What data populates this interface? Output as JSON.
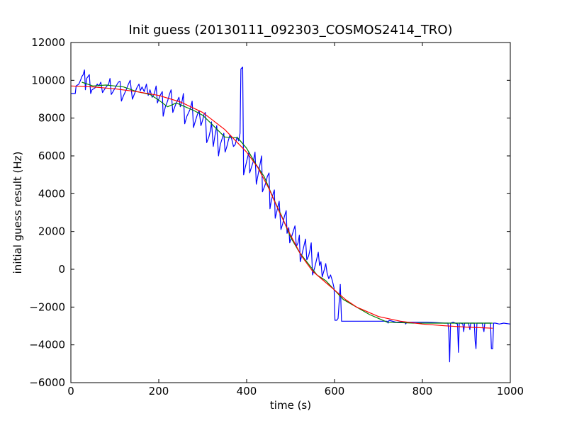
{
  "chart_data": {
    "type": "line",
    "title": "Init guess (20130111_092303_COSMOS2414_TRO)",
    "xlabel": "time (s)",
    "ylabel": "initial guess result (Hz)",
    "xlim": [
      0,
      1000
    ],
    "ylim": [
      -6000,
      12000
    ],
    "xticks": [
      0,
      200,
      400,
      600,
      800,
      1000
    ],
    "yticks": [
      -6000,
      -4000,
      -2000,
      0,
      2000,
      4000,
      6000,
      8000,
      10000,
      12000
    ],
    "grid": false,
    "legend": "none",
    "series": [
      {
        "color": "#0000ff",
        "points": [
          [
            0,
            9300
          ],
          [
            10,
            9300
          ],
          [
            12,
            9700
          ],
          [
            18,
            9800
          ],
          [
            22,
            10000
          ],
          [
            25,
            10200
          ],
          [
            28,
            10300
          ],
          [
            31,
            10550
          ],
          [
            33,
            9500
          ],
          [
            36,
            10100
          ],
          [
            42,
            10300
          ],
          [
            45,
            9300
          ],
          [
            48,
            9500
          ],
          [
            55,
            9600
          ],
          [
            60,
            9800
          ],
          [
            64,
            9700
          ],
          [
            68,
            9900
          ],
          [
            72,
            9350
          ],
          [
            76,
            9500
          ],
          [
            82,
            9700
          ],
          [
            86,
            9800
          ],
          [
            89,
            10100
          ],
          [
            92,
            9250
          ],
          [
            96,
            9400
          ],
          [
            103,
            9700
          ],
          [
            108,
            9900
          ],
          [
            112,
            9950
          ],
          [
            115,
            8900
          ],
          [
            120,
            9200
          ],
          [
            126,
            9500
          ],
          [
            131,
            9800
          ],
          [
            135,
            10000
          ],
          [
            140,
            9000
          ],
          [
            145,
            9300
          ],
          [
            150,
            9600
          ],
          [
            155,
            9800
          ],
          [
            158,
            9450
          ],
          [
            162,
            9650
          ],
          [
            167,
            9400
          ],
          [
            172,
            9800
          ],
          [
            176,
            9200
          ],
          [
            180,
            9500
          ],
          [
            185,
            9100
          ],
          [
            190,
            9300
          ],
          [
            194,
            9700
          ],
          [
            197,
            8800
          ],
          [
            203,
            9200
          ],
          [
            208,
            9400
          ],
          [
            210,
            8100
          ],
          [
            215,
            8600
          ],
          [
            220,
            8900
          ],
          [
            225,
            9300
          ],
          [
            228,
            9500
          ],
          [
            232,
            8300
          ],
          [
            238,
            8700
          ],
          [
            242,
            8900
          ],
          [
            246,
            9100
          ],
          [
            249,
            8600
          ],
          [
            253,
            8900
          ],
          [
            256,
            9300
          ],
          [
            259,
            7700
          ],
          [
            264,
            8100
          ],
          [
            268,
            8300
          ],
          [
            272,
            8500
          ],
          [
            276,
            8900
          ],
          [
            279,
            7500
          ],
          [
            284,
            7900
          ],
          [
            288,
            8200
          ],
          [
            292,
            8400
          ],
          [
            296,
            7600
          ],
          [
            300,
            7900
          ],
          [
            303,
            8200
          ],
          [
            306,
            8300
          ],
          [
            309,
            6700
          ],
          [
            314,
            7000
          ],
          [
            318,
            7400
          ],
          [
            320,
            7800
          ],
          [
            324,
            6500
          ],
          [
            328,
            7100
          ],
          [
            332,
            7600
          ],
          [
            336,
            6000
          ],
          [
            340,
            6600
          ],
          [
            344,
            6900
          ],
          [
            348,
            7200
          ],
          [
            351,
            6200
          ],
          [
            355,
            6500
          ],
          [
            358,
            6800
          ],
          [
            362,
            7100
          ],
          [
            366,
            6900
          ],
          [
            370,
            6500
          ],
          [
            374,
            6600
          ],
          [
            378,
            7000
          ],
          [
            382,
            6800
          ],
          [
            385,
            7200
          ],
          [
            387,
            10600
          ],
          [
            391,
            10700
          ],
          [
            393,
            5000
          ],
          [
            397,
            5400
          ],
          [
            401,
            5800
          ],
          [
            405,
            6200
          ],
          [
            407,
            5100
          ],
          [
            411,
            5400
          ],
          [
            415,
            5700
          ],
          [
            419,
            6200
          ],
          [
            422,
            4500
          ],
          [
            426,
            5000
          ],
          [
            430,
            5500
          ],
          [
            434,
            6000
          ],
          [
            436,
            4100
          ],
          [
            441,
            4400
          ],
          [
            444,
            4600
          ],
          [
            447,
            4900
          ],
          [
            451,
            5100
          ],
          [
            453,
            3200
          ],
          [
            456,
            3600
          ],
          [
            459,
            3900
          ],
          [
            463,
            4200
          ],
          [
            465,
            2700
          ],
          [
            468,
            3000
          ],
          [
            471,
            3300
          ],
          [
            474,
            3600
          ],
          [
            478,
            2100
          ],
          [
            482,
            2400
          ],
          [
            486,
            2800
          ],
          [
            490,
            3100
          ],
          [
            492,
            1900
          ],
          [
            496,
            2200
          ],
          [
            498,
            1400
          ],
          [
            502,
            1700
          ],
          [
            506,
            2000
          ],
          [
            510,
            2300
          ],
          [
            513,
            1200
          ],
          [
            517,
            1400
          ],
          [
            520,
            1800
          ],
          [
            522,
            400
          ],
          [
            526,
            800
          ],
          [
            530,
            1200
          ],
          [
            534,
            1600
          ],
          [
            537,
            500
          ],
          [
            541,
            700
          ],
          [
            544,
            1000
          ],
          [
            547,
            1400
          ],
          [
            550,
            -300
          ],
          [
            555,
            100
          ],
          [
            559,
            500
          ],
          [
            563,
            900
          ],
          [
            566,
            200
          ],
          [
            569,
            400
          ],
          [
            572,
            -400
          ],
          [
            577,
            0
          ],
          [
            580,
            300
          ],
          [
            583,
            -200
          ],
          [
            587,
            -500
          ],
          [
            591,
            -300
          ],
          [
            595,
            -600
          ],
          [
            599,
            -1000
          ],
          [
            601,
            -2700
          ],
          [
            605,
            -2700
          ],
          [
            608,
            -2600
          ],
          [
            611,
            -1600
          ],
          [
            613,
            -800
          ],
          [
            616,
            -2750
          ],
          [
            630,
            -2750
          ],
          [
            660,
            -2750
          ],
          [
            700,
            -2750
          ],
          [
            720,
            -2750
          ],
          [
            722,
            -2850
          ],
          [
            724,
            -2700
          ],
          [
            740,
            -2800
          ],
          [
            760,
            -2780
          ],
          [
            762,
            -2900
          ],
          [
            764,
            -2800
          ],
          [
            790,
            -2800
          ],
          [
            810,
            -2800
          ],
          [
            830,
            -2820
          ],
          [
            850,
            -2850
          ],
          [
            858,
            -2850
          ],
          [
            860,
            -3300
          ],
          [
            862,
            -4900
          ],
          [
            864,
            -2850
          ],
          [
            870,
            -2800
          ],
          [
            880,
            -2900
          ],
          [
            882,
            -4400
          ],
          [
            884,
            -2850
          ],
          [
            888,
            -2850
          ],
          [
            892,
            -2900
          ],
          [
            894,
            -3300
          ],
          [
            896,
            -2850
          ],
          [
            905,
            -2850
          ],
          [
            908,
            -3200
          ],
          [
            910,
            -2850
          ],
          [
            918,
            -2850
          ],
          [
            920,
            -3800
          ],
          [
            922,
            -4200
          ],
          [
            924,
            -2850
          ],
          [
            930,
            -2850
          ],
          [
            936,
            -2850
          ],
          [
            940,
            -3300
          ],
          [
            942,
            -2850
          ],
          [
            950,
            -2850
          ],
          [
            955,
            -2850
          ],
          [
            957,
            -4200
          ],
          [
            960,
            -4200
          ],
          [
            962,
            -2850
          ],
          [
            966,
            -2850
          ],
          [
            975,
            -2900
          ],
          [
            985,
            -2850
          ],
          [
            1000,
            -2900
          ]
        ]
      },
      {
        "color": "#008000",
        "points": [
          [
            25,
            9900
          ],
          [
            50,
            9700
          ],
          [
            80,
            9750
          ],
          [
            100,
            9700
          ],
          [
            120,
            9650
          ],
          [
            150,
            9400
          ],
          [
            180,
            9250
          ],
          [
            200,
            8950
          ],
          [
            220,
            8600
          ],
          [
            240,
            8800
          ],
          [
            260,
            8600
          ],
          [
            280,
            8400
          ],
          [
            300,
            8150
          ],
          [
            320,
            7700
          ],
          [
            350,
            7000
          ],
          [
            380,
            6950
          ],
          [
            400,
            6400
          ],
          [
            420,
            5600
          ],
          [
            440,
            4900
          ],
          [
            460,
            3800
          ],
          [
            480,
            2800
          ],
          [
            500,
            1700
          ],
          [
            520,
            900
          ],
          [
            540,
            300
          ],
          [
            560,
            -300
          ],
          [
            580,
            -600
          ],
          [
            600,
            -1100
          ],
          [
            620,
            -1600
          ],
          [
            650,
            -2000
          ],
          [
            680,
            -2400
          ],
          [
            700,
            -2600
          ],
          [
            720,
            -2800
          ],
          [
            740,
            -2820
          ],
          [
            760,
            -2830
          ],
          [
            780,
            -2850
          ],
          [
            800,
            -2850
          ],
          [
            850,
            -2850
          ],
          [
            900,
            -2850
          ],
          [
            960,
            -2850
          ]
        ]
      },
      {
        "color": "#ff0000",
        "points": [
          [
            0,
            9700
          ],
          [
            50,
            9650
          ],
          [
            100,
            9550
          ],
          [
            150,
            9400
          ],
          [
            200,
            9200
          ],
          [
            250,
            8850
          ],
          [
            300,
            8300
          ],
          [
            350,
            7400
          ],
          [
            400,
            6200
          ],
          [
            425,
            5400
          ],
          [
            450,
            4300
          ],
          [
            475,
            3000
          ],
          [
            500,
            1800
          ],
          [
            525,
            700
          ],
          [
            550,
            -100
          ],
          [
            575,
            -600
          ],
          [
            600,
            -1100
          ],
          [
            625,
            -1600
          ],
          [
            650,
            -2000
          ],
          [
            700,
            -2500
          ],
          [
            750,
            -2750
          ],
          [
            800,
            -2900
          ],
          [
            850,
            -2990
          ],
          [
            900,
            -3060
          ],
          [
            960,
            -3120
          ]
        ]
      }
    ]
  }
}
